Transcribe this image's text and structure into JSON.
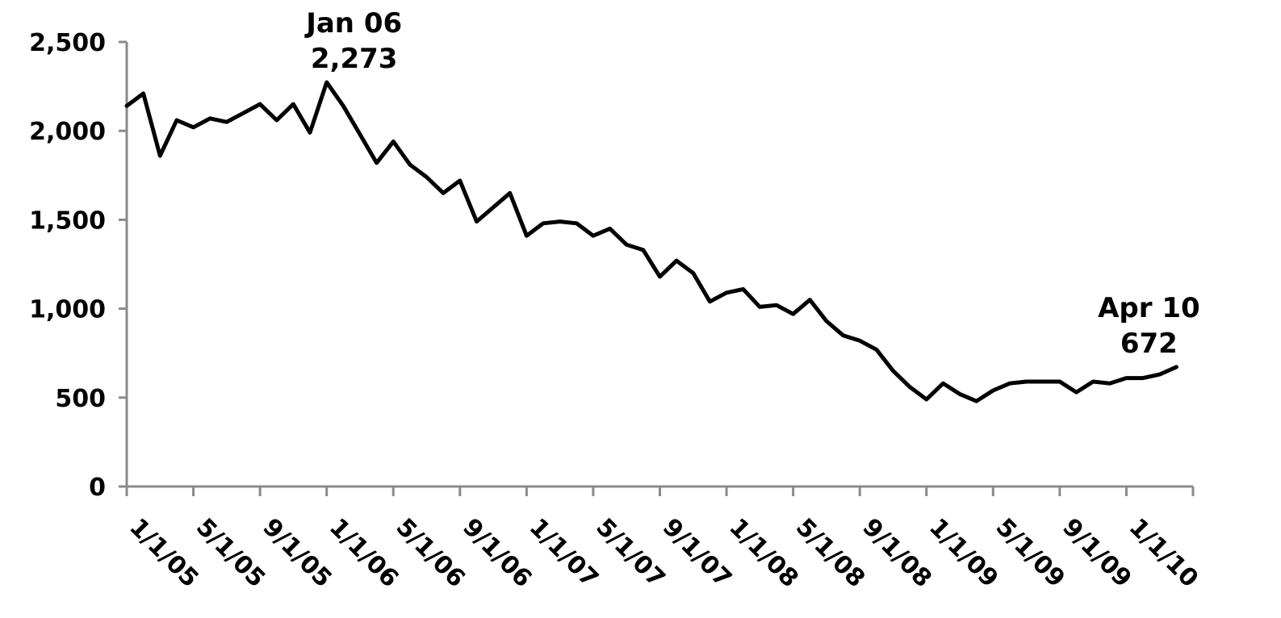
{
  "chart_data": {
    "type": "line",
    "title": "",
    "xlabel": "",
    "ylabel": "",
    "ylim": [
      0,
      2500
    ],
    "y_ticks": [
      "0",
      "500",
      "1,000",
      "1,500",
      "2,000",
      "2,500"
    ],
    "y_tick_values": [
      0,
      500,
      1000,
      1500,
      2000,
      2500
    ],
    "x_tick_labels": [
      "1/1/05",
      "5/1/05",
      "9/1/05",
      "1/1/06",
      "5/1/06",
      "9/1/06",
      "1/1/07",
      "5/1/07",
      "9/1/07",
      "1/1/08",
      "5/1/08",
      "9/1/08",
      "1/1/09",
      "5/1/09",
      "9/1/09",
      "1/1/10"
    ],
    "x_tick_months": [
      0,
      4,
      8,
      12,
      16,
      20,
      24,
      28,
      32,
      36,
      40,
      44,
      48,
      52,
      56,
      60
    ],
    "x_range_months": [
      0,
      64
    ],
    "grid": false,
    "legend": "none",
    "line_color": "#000000",
    "series": [
      {
        "x": [
          "2005-01",
          "2005-02",
          "2005-03",
          "2005-04",
          "2005-05",
          "2005-06",
          "2005-07",
          "2005-08",
          "2005-09",
          "2005-10",
          "2005-11",
          "2005-12",
          "2006-01",
          "2006-02",
          "2006-03",
          "2006-04",
          "2006-05",
          "2006-06",
          "2006-07",
          "2006-08",
          "2006-09",
          "2006-10",
          "2006-11",
          "2006-12",
          "2007-01",
          "2007-02",
          "2007-03",
          "2007-04",
          "2007-05",
          "2007-06",
          "2007-07",
          "2007-08",
          "2007-09",
          "2007-10",
          "2007-11",
          "2007-12",
          "2008-01",
          "2008-02",
          "2008-03",
          "2008-04",
          "2008-05",
          "2008-06",
          "2008-07",
          "2008-08",
          "2008-09",
          "2008-10",
          "2008-11",
          "2008-12",
          "2009-01",
          "2009-02",
          "2009-03",
          "2009-04",
          "2009-05",
          "2009-06",
          "2009-07",
          "2009-08",
          "2009-09",
          "2009-10",
          "2009-11",
          "2009-12",
          "2010-01",
          "2010-02",
          "2010-03",
          "2010-04"
        ],
        "values": [
          2140,
          2210,
          1860,
          2060,
          2020,
          2070,
          2050,
          2100,
          2150,
          2060,
          2150,
          1990,
          2273,
          2140,
          1980,
          1820,
          1940,
          1810,
          1740,
          1650,
          1720,
          1490,
          1570,
          1650,
          1410,
          1480,
          1490,
          1480,
          1410,
          1450,
          1360,
          1330,
          1180,
          1270,
          1200,
          1040,
          1090,
          1110,
          1010,
          1020,
          970,
          1050,
          930,
          850,
          820,
          770,
          650,
          560,
          490,
          580,
          520,
          480,
          540,
          580,
          590,
          590,
          590,
          530,
          590,
          580,
          610,
          610,
          630,
          672
        ]
      }
    ],
    "annotations": [
      {
        "label": "Jan 06",
        "value_text": "2,273",
        "x": "2006-01",
        "y": 2273
      },
      {
        "label": "Apr 10",
        "value_text": "672",
        "x": "2010-04",
        "y": 672
      }
    ]
  }
}
